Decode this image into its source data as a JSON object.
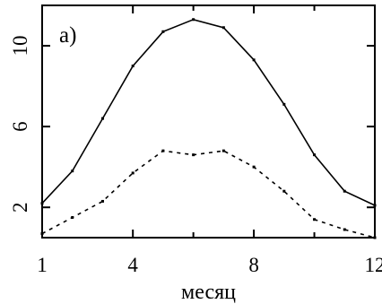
{
  "chart_data": {
    "type": "line",
    "panel_label": "a)",
    "xlabel": "месяц",
    "ylabel": "",
    "xlim": [
      1,
      12
    ],
    "ylim": [
      0.5,
      12
    ],
    "x_ticks": [
      1,
      4,
      8,
      12
    ],
    "x_minor_ticks": [
      6,
      10
    ],
    "y_ticks": [
      2,
      6,
      10
    ],
    "grid": false,
    "legend": "none",
    "series": [
      {
        "style": "solid",
        "color": "#000000",
        "x": [
          1,
          2,
          3,
          4,
          5,
          6,
          7,
          8,
          9,
          10,
          11,
          12
        ],
        "y": [
          2.2,
          3.8,
          6.4,
          9.0,
          10.7,
          11.3,
          10.9,
          9.3,
          7.1,
          4.6,
          2.8,
          2.1
        ]
      },
      {
        "style": "dashed",
        "color": "#000000",
        "x": [
          1,
          2,
          3,
          4,
          5,
          6,
          7,
          8,
          9,
          10,
          11,
          12
        ],
        "y": [
          0.7,
          1.5,
          2.3,
          3.7,
          4.8,
          4.6,
          4.8,
          4.0,
          2.8,
          1.4,
          0.9,
          0.5
        ]
      }
    ]
  }
}
